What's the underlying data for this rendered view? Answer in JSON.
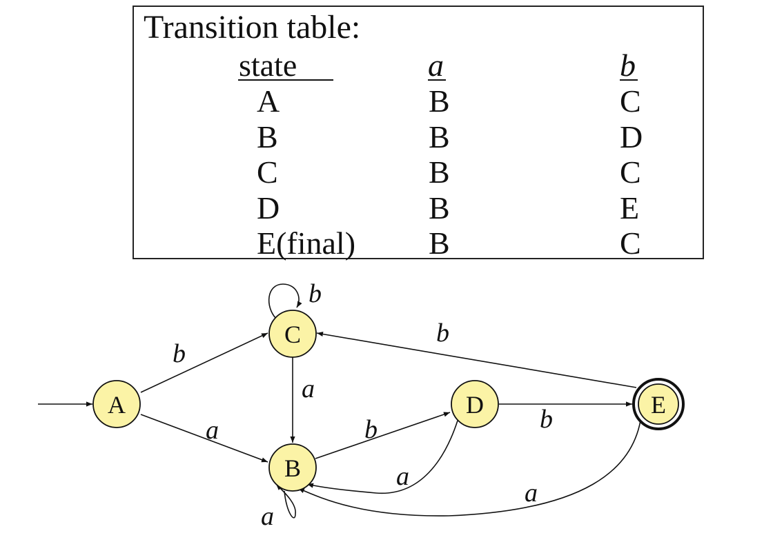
{
  "table": {
    "title": "Transition table:",
    "headers": {
      "state": "state",
      "a": "a",
      "b": "b"
    },
    "rows": [
      {
        "state": "A",
        "a": "B",
        "b": "C"
      },
      {
        "state": "B",
        "a": "B",
        "b": "D"
      },
      {
        "state": "C",
        "a": "B",
        "b": "C"
      },
      {
        "state": "D",
        "a": "B",
        "b": "E"
      },
      {
        "state": "E(final)",
        "a": "B",
        "b": "C"
      }
    ]
  },
  "diagram": {
    "node_fill": "#fbf3a6",
    "states": [
      {
        "id": "A",
        "label": "A",
        "start": true,
        "final": false
      },
      {
        "id": "B",
        "label": "B",
        "start": false,
        "final": false
      },
      {
        "id": "C",
        "label": "C",
        "start": false,
        "final": false
      },
      {
        "id": "D",
        "label": "D",
        "start": false,
        "final": false
      },
      {
        "id": "E",
        "label": "E",
        "start": false,
        "final": true
      }
    ],
    "transitions": [
      {
        "from": "A",
        "to": "C",
        "label": "b"
      },
      {
        "from": "A",
        "to": "B",
        "label": "a"
      },
      {
        "from": "C",
        "to": "C",
        "label": "b"
      },
      {
        "from": "C",
        "to": "B",
        "label": "a"
      },
      {
        "from": "B",
        "to": "B",
        "label": "a"
      },
      {
        "from": "B",
        "to": "D",
        "label": "b"
      },
      {
        "from": "D",
        "to": "B",
        "label": "a"
      },
      {
        "from": "D",
        "to": "E",
        "label": "b"
      },
      {
        "from": "E",
        "to": "C",
        "label": "b"
      },
      {
        "from": "E",
        "to": "B",
        "label": "a"
      }
    ]
  }
}
